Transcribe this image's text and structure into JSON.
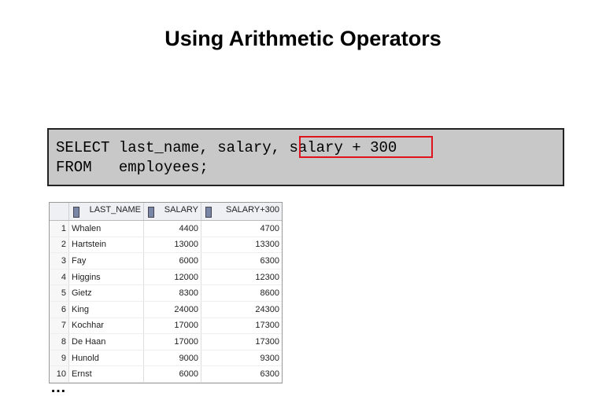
{
  "title": "Using Arithmetic Operators",
  "sql": {
    "line1_prefix": "SELECT last_name, salary, ",
    "line1_highlight": "salary + 300",
    "line2": "FROM   employees;",
    "highlight_color": "#e0141e"
  },
  "table": {
    "columns": [
      "LAST_NAME",
      "SALARY",
      "SALARY+300"
    ],
    "rows": [
      [
        1,
        "Whalen",
        4400,
        4700
      ],
      [
        2,
        "Hartstein",
        13000,
        13300
      ],
      [
        3,
        "Fay",
        6000,
        6300
      ],
      [
        4,
        "Higgins",
        12000,
        12300
      ],
      [
        5,
        "Gietz",
        8300,
        8600
      ],
      [
        6,
        "King",
        24000,
        24300
      ],
      [
        7,
        "Kochhar",
        17000,
        17300
      ],
      [
        8,
        "De Haan",
        17000,
        17300
      ],
      [
        9,
        "Hunold",
        9000,
        9300
      ],
      [
        10,
        "Ernst",
        6000,
        6300
      ]
    ]
  },
  "continuation": "…"
}
